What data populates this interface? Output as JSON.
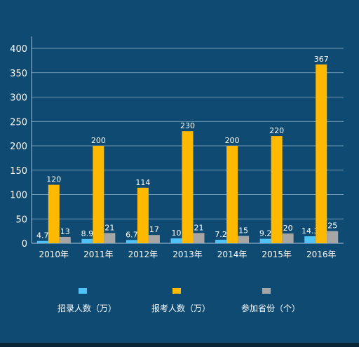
{
  "chart_data": {
    "type": "bar",
    "categories": [
      "2010年",
      "2011年",
      "2012年",
      "2013年",
      "2014年",
      "2015年",
      "2016年"
    ],
    "series": [
      {
        "name": "招录人数（万）",
        "color": "#4fc3f7",
        "values": [
          4.7,
          8.9,
          6.7,
          10,
          7.2,
          9.2,
          14.3
        ]
      },
      {
        "name": "报考人数（万）",
        "color": "#ffb900",
        "values": [
          120,
          200,
          114,
          230,
          200,
          220,
          367
        ]
      },
      {
        "name": "参加省份（个）",
        "color": "#a6a6a6",
        "values": [
          13,
          21,
          17,
          21,
          15,
          20,
          25
        ]
      }
    ],
    "data_labels": [
      [
        "4.7",
        "8.9",
        "6.7",
        "10",
        "7.2",
        "9.2",
        "14.3"
      ],
      [
        "120",
        "200",
        "114",
        "230",
        "200",
        "220",
        "367"
      ],
      [
        "13",
        "21",
        "17",
        "21",
        "15",
        "20",
        "25"
      ]
    ],
    "ylim": [
      0,
      400
    ],
    "yticks": [
      0,
      50,
      100,
      150,
      200,
      250,
      300,
      350,
      400
    ],
    "grid": true,
    "legend_position": "bottom",
    "colors": {
      "background": "#0f4a72",
      "grid": "#8fb3cc",
      "axis": "#9fbfd6",
      "text": "#ffffff"
    }
  }
}
